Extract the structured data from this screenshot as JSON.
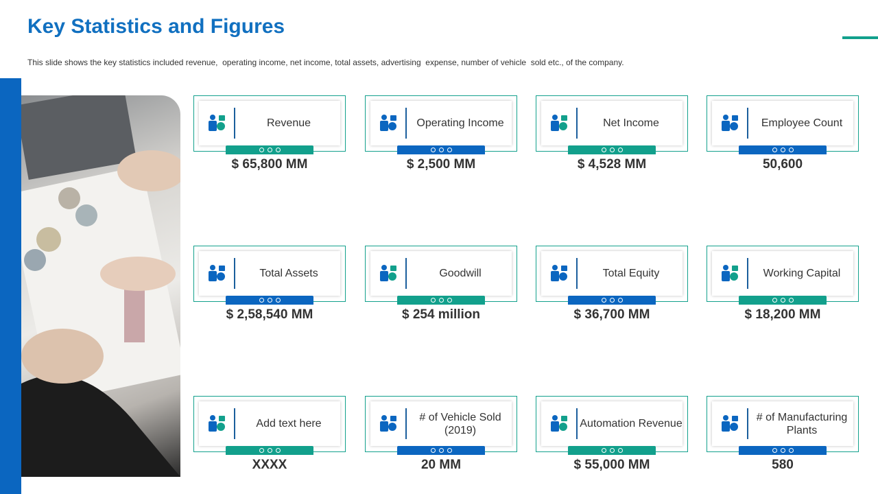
{
  "header": {
    "title": "Key Statistics and Figures",
    "subtitle": "This slide shows the key statistics included revenue,  operating income, net income, total assets, advertising  expense, number of vehicle  sold etc., of the company."
  },
  "cards": [
    {
      "label": "Revenue",
      "value": "$ 65,800 MM"
    },
    {
      "label": "Operating Income",
      "value": "$ 2,500 MM"
    },
    {
      "label": "Net Income",
      "value": "$ 4,528 MM"
    },
    {
      "label": "Employee Count",
      "value": "50,600"
    },
    {
      "label": "Total Assets",
      "value": "$ 2,58,540 MM"
    },
    {
      "label": "Goodwill",
      "value": "$ 254 million"
    },
    {
      "label": "Total Equity",
      "value": "$ 36,700 MM"
    },
    {
      "label": "Working Capital",
      "value": "$ 18,200 MM"
    },
    {
      "label": "Add text here",
      "value": "XXXX"
    },
    {
      "label": "# of Vehicle Sold (2019)",
      "value": "20 MM"
    },
    {
      "label": "Automation Revenue",
      "value": "$ 55,000 MM"
    },
    {
      "label": "# of Manufacturing Plants",
      "value": "580"
    }
  ]
}
